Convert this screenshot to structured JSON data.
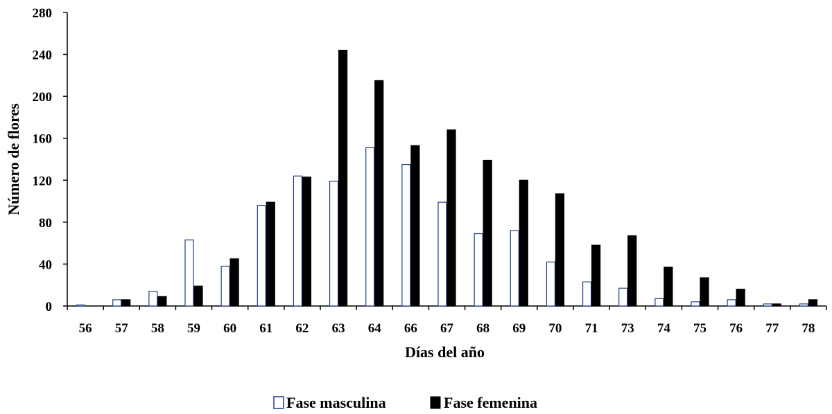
{
  "chart_data": {
    "type": "bar",
    "title": "",
    "xlabel": "Días del año",
    "ylabel": "Número de flores",
    "ylim": [
      0,
      280
    ],
    "yticks": [
      0,
      40,
      80,
      120,
      160,
      200,
      240,
      280
    ],
    "categories": [
      "56",
      "57",
      "58",
      "59",
      "60",
      "61",
      "62",
      "63",
      "64",
      "66",
      "67",
      "68",
      "69",
      "70",
      "71",
      "73",
      "74",
      "75",
      "76",
      "77",
      "78"
    ],
    "series": [
      {
        "name": "Fase masculina",
        "fill": "#ffffff",
        "stroke": "#1f3c88",
        "values": [
          1,
          6,
          14,
          63,
          38,
          96,
          124,
          119,
          151,
          135,
          99,
          69,
          72,
          42,
          23,
          17,
          7,
          4,
          6,
          2,
          2
        ]
      },
      {
        "name": "Fase femenina",
        "fill": "#000000",
        "stroke": "#000000",
        "values": [
          0,
          6,
          9,
          19,
          45,
          99,
          123,
          244,
          215,
          153,
          168,
          139,
          120,
          107,
          58,
          67,
          37,
          27,
          16,
          2,
          6
        ]
      }
    ],
    "grid": false,
    "legend_position": "bottom-center"
  }
}
